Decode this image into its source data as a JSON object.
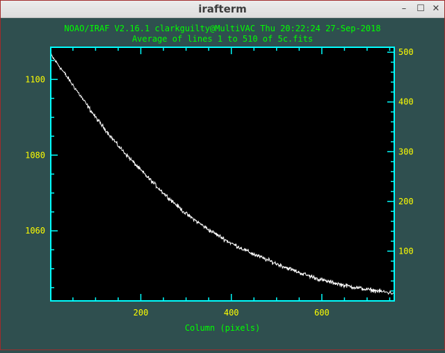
{
  "window": {
    "title": "irafterm",
    "minimize_glyph": "–",
    "maximize_glyph": "☐",
    "close_glyph": "✕"
  },
  "header": {
    "line1": "NOAO/IRAF V2.16.1 clarkguilty@MultiVAC Thu 20:22:24 27-Sep-2018",
    "line2": "Average of lines 1 to 510 of 5c.fits"
  },
  "colors": {
    "background": "#2f4f4f",
    "axes": "#00ffff",
    "ticklabels": "#ffff00",
    "header_text": "#00ff00",
    "plot_bg": "#000000",
    "data": "#ffffff"
  },
  "chart_data": {
    "type": "line",
    "title": "NOAO/IRAF V2.16.1 clarkguilty@MultiVAC Thu 20:22:24 27-Sep-2018",
    "subtitle": "Average of lines 1 to 510 of 5c.fits",
    "xlabel": "Column (pixels)",
    "ylabel": "",
    "xlim": [
      1,
      760
    ],
    "ylim": [
      1041.5,
      1108.5
    ],
    "y2lim": [
      0,
      510
    ],
    "x_ticks": [
      200,
      400,
      600
    ],
    "y_ticks": [
      1060,
      1080,
      1100
    ],
    "y2_ticks": [
      100,
      200,
      300,
      400,
      500
    ],
    "grid": false,
    "series": [
      {
        "x": [
          1,
          20,
          50,
          100,
          150,
          200,
          250,
          300,
          350,
          400,
          450,
          500,
          550,
          600,
          650,
          700,
          760
        ],
        "values": [
          1106.5,
          1103.5,
          1098.5,
          1090.0,
          1082.5,
          1076.0,
          1070.0,
          1064.5,
          1060.3,
          1056.7,
          1053.8,
          1051.3,
          1049.0,
          1047.0,
          1045.6,
          1044.5,
          1043.5
        ]
      }
    ]
  }
}
